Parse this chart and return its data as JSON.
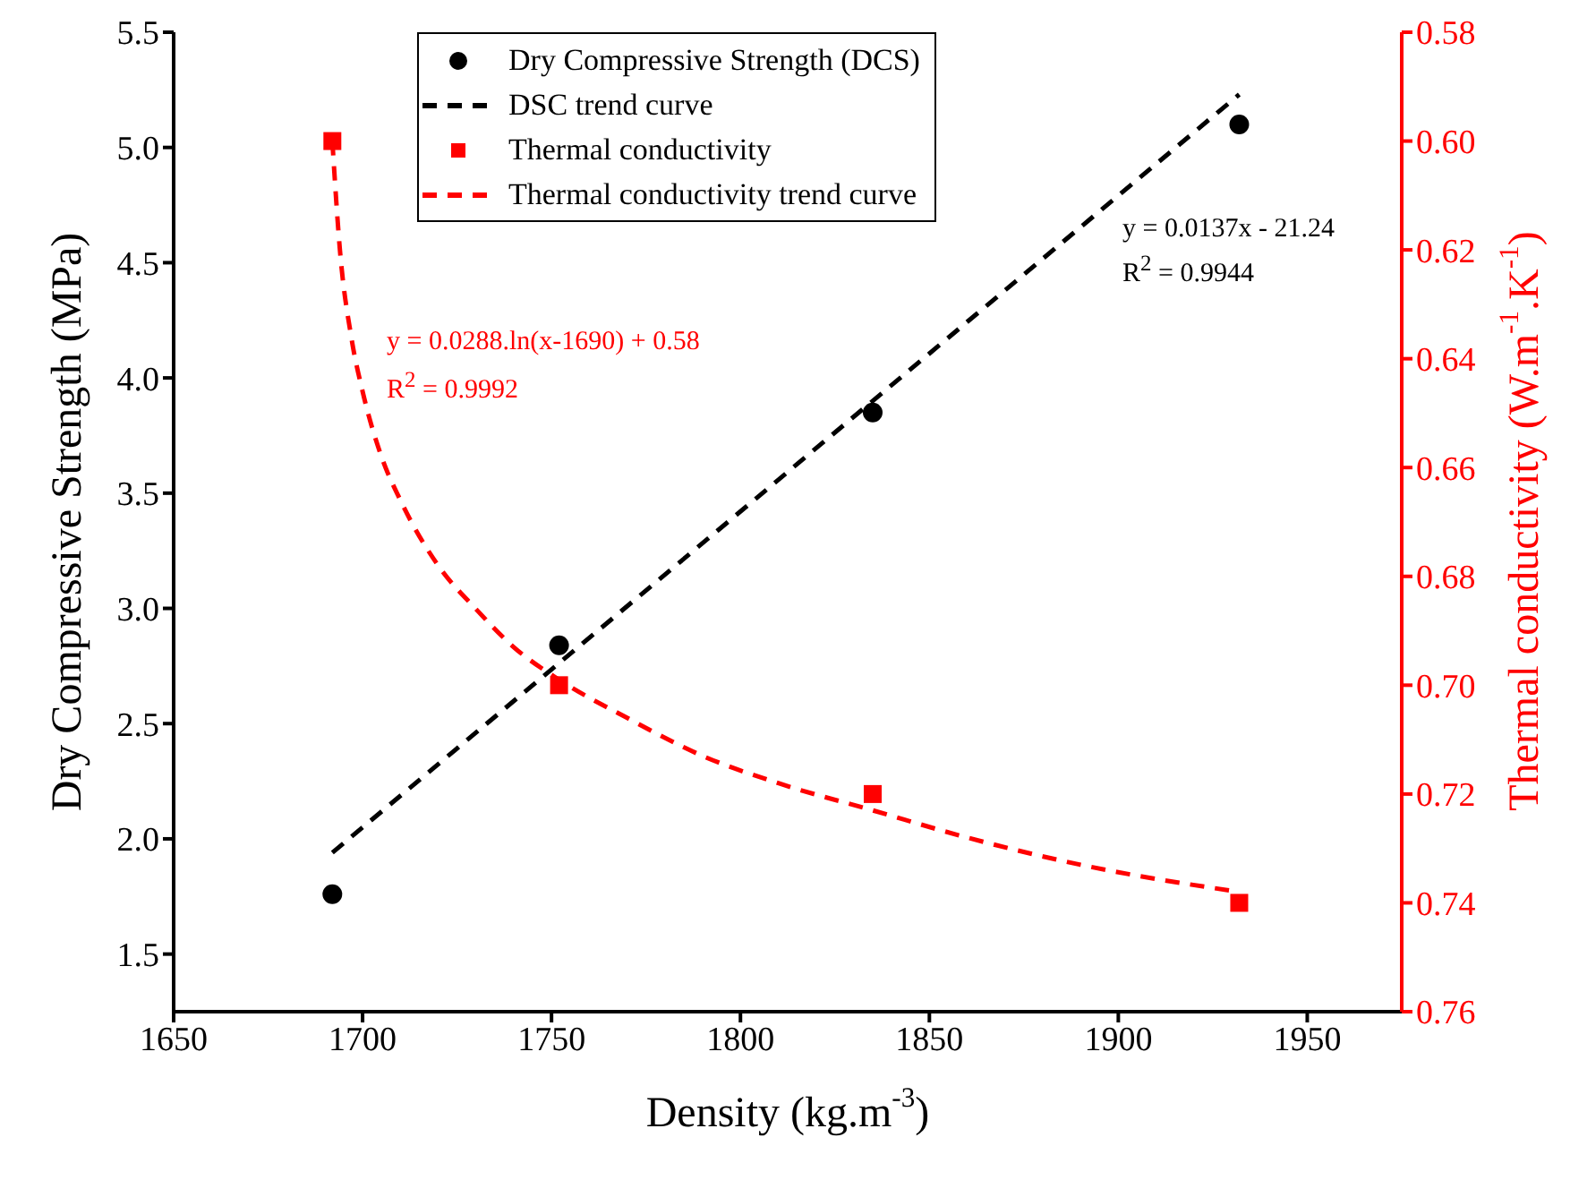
{
  "chart_data": {
    "type": "scatter",
    "xlabel": "Density (kg.m$^{-3}$)",
    "ylabel": "Dry Compressive Strength (MPa)",
    "y2label": "Thermal conductivity (W.m$^{-1}$.K$^{-1}$)",
    "xlim": [
      1650,
      1975
    ],
    "xticks": [
      1650,
      1700,
      1750,
      1800,
      1850,
      1900,
      1950
    ],
    "ylim": [
      1.25,
      5.5
    ],
    "yticks": [
      {
        "value": 1.5,
        "label": "1.5"
      },
      {
        "value": 2,
        "label": "2.0"
      },
      {
        "value": 2.5,
        "label": "2.5"
      },
      {
        "value": 3,
        "label": "3.0"
      },
      {
        "value": 3.5,
        "label": "3.5"
      },
      {
        "value": 4,
        "label": "4.0"
      },
      {
        "value": 4.5,
        "label": "4.5"
      },
      {
        "value": 5,
        "label": "5.0"
      },
      {
        "value": 5.5,
        "label": "5.5"
      }
    ],
    "y2lim": [
      0.76,
      0.58
    ],
    "y2ticks": [
      0.58,
      {
        "value": 0.6,
        "label": "0.60"
      },
      0.62,
      0.64,
      0.66,
      0.68,
      {
        "value": 0.7,
        "label": "0.70"
      },
      0.72,
      0.74,
      0.76
    ],
    "grid": false,
    "legend": "top",
    "annotations": [
      "y = 0.0137x - 21.24",
      "R$^{2}$ = 0.9944",
      "y = 0.0288.ln(x-1690) + 0.58",
      "R$^{2}$ = 0.9992"
    ],
    "series": [
      {
        "name": "Dry Compressive Strength (DCS)",
        "marker": "circle",
        "color": "#000000",
        "x": [
          1692,
          1752,
          1835,
          1932
        ],
        "values": [
          1.76,
          2.84,
          3.85,
          5.1
        ]
      },
      {
        "name": "DSC trend curve",
        "type": "line",
        "line_style": "dashed",
        "marker": "none",
        "color": "#000000",
        "x": [
          1692,
          1932
        ],
        "values": [
          1.94,
          5.23
        ]
      },
      {
        "name": "Thermal conductivity",
        "marker": "square",
        "color": "#ff0000",
        "axis": "y2",
        "x": [
          1692,
          1752,
          1835,
          1932
        ],
        "values": [
          0.6,
          0.7,
          0.72,
          0.74
        ]
      },
      {
        "name": "Thermal conductivity trend curve",
        "type": "line",
        "line_style": "dashed",
        "marker": "none",
        "color": "#ff0000",
        "axis": "y2",
        "x": [
          1692,
          1694,
          1697,
          1700,
          1705,
          1710,
          1720,
          1730,
          1740,
          1752,
          1770,
          1790,
          1810,
          1835,
          1860,
          1890,
          1932
        ],
        "values": [
          0.6,
          0.62,
          0.636,
          0.646,
          0.658,
          0.666,
          0.678,
          0.686,
          0.693,
          0.699,
          0.706,
          0.713,
          0.718,
          0.723,
          0.728,
          0.733,
          0.738
        ]
      }
    ]
  }
}
